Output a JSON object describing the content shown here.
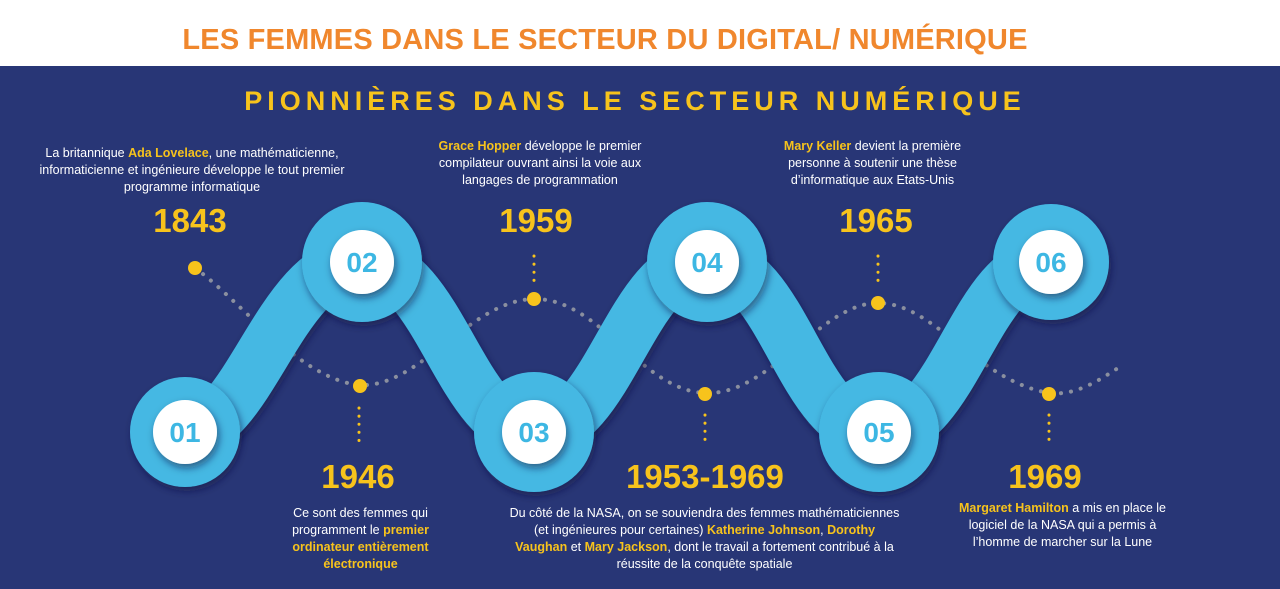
{
  "title": "LES FEMMES DANS LE SECTEUR DU DIGITAL/ NUMÉRIQUE",
  "subtitle": "PIONNIÈRES DANS LE SECTEUR NUMÉRIQUE",
  "colors": {
    "title": "#f0872d",
    "background": "#283676",
    "accent": "#f7c31c",
    "wave": "#45b8e3",
    "circle": "#ffffff",
    "number": "#3db7e3",
    "text": "#ffffff"
  },
  "steps": [
    {
      "number": "01",
      "year": "1843",
      "desc": [
        "La britannique ",
        "Ada Lovelace",
        ", une mathématicienne, informaticienne et ingénieure développe le tout premier programme informatique"
      ]
    },
    {
      "number": "02",
      "year": "1946",
      "desc": [
        "Ce sont des femmes qui programment le ",
        "premier ordinateur entièrement électronique",
        ""
      ]
    },
    {
      "number": "03",
      "year": "1959",
      "desc": [
        "",
        "Grace Hopper",
        " développe le premier compilateur ouvrant ainsi la voie aux langages de programmation"
      ]
    },
    {
      "number": "04",
      "year": "1953-1969",
      "desc": [
        "Du côté de la NASA, on se souviendra des femmes mathématiciennes (et ingénieures pour certaines) ",
        "Katherine Johnson",
        ", ",
        "Dorothy Vaughan",
        " et ",
        "Mary Jackson",
        ", dont le travail a fortement contribué à la réussite de la conquête spatiale"
      ]
    },
    {
      "number": "05",
      "year": "1965",
      "desc": [
        "",
        "Mary Keller",
        " devient la première personne à soutenir une thèse d’informatique aux Etats-Unis"
      ]
    },
    {
      "number": "06",
      "year": "1969",
      "desc": [
        "",
        "Margaret Hamilton",
        " a mis en place le logiciel de la NASA qui a permis à l’homme de marcher sur la Lune"
      ]
    }
  ]
}
